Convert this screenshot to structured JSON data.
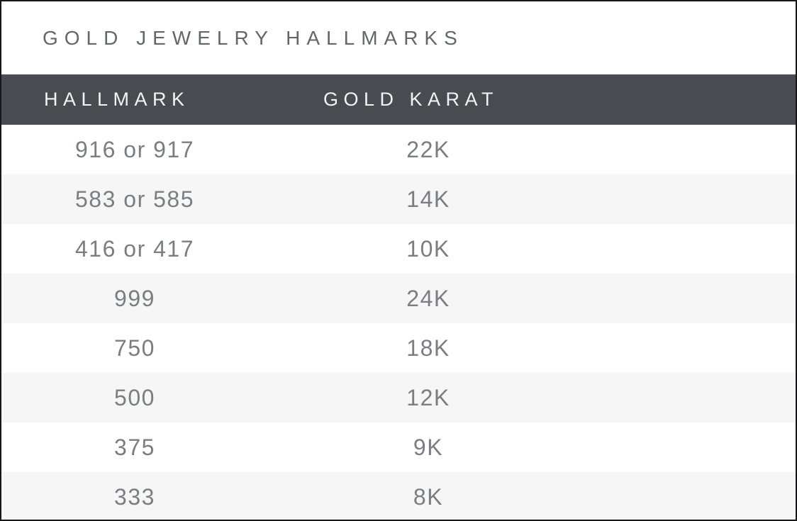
{
  "title": "GOLD JEWELRY HALLMARKS",
  "table": {
    "columns": [
      {
        "label": "HALLMARK"
      },
      {
        "label": "GOLD KARAT"
      }
    ],
    "rows": [
      {
        "hallmark": "916 or 917",
        "karat": "22K"
      },
      {
        "hallmark": "583 or 585",
        "karat": "14K"
      },
      {
        "hallmark": "416 or 417",
        "karat": "10K"
      },
      {
        "hallmark": "999",
        "karat": "24K"
      },
      {
        "hallmark": "750",
        "karat": "18K"
      },
      {
        "hallmark": "500",
        "karat": "12K"
      },
      {
        "hallmark": "375",
        "karat": "9K"
      },
      {
        "hallmark": "333",
        "karat": "8K"
      }
    ]
  },
  "chart_data": {
    "type": "table",
    "title": "GOLD JEWELRY HALLMARKS",
    "columns": [
      "HALLMARK",
      "GOLD KARAT"
    ],
    "rows": [
      [
        "916 or 917",
        "22K"
      ],
      [
        "583 or 585",
        "14K"
      ],
      [
        "416 or 417",
        "10K"
      ],
      [
        "999",
        "24K"
      ],
      [
        "750",
        "18K"
      ],
      [
        "500",
        "12K"
      ],
      [
        "375",
        "9K"
      ],
      [
        "333",
        "8K"
      ]
    ]
  },
  "colors": {
    "header_bg": "#4a4b51",
    "header_text": "#f2f3f4",
    "title_text": "#63666b",
    "value_text": "#7a7d82",
    "row_alt_bg": "#f6f6f7",
    "row_bg": "#ffffff",
    "border_color": "#17171a"
  }
}
